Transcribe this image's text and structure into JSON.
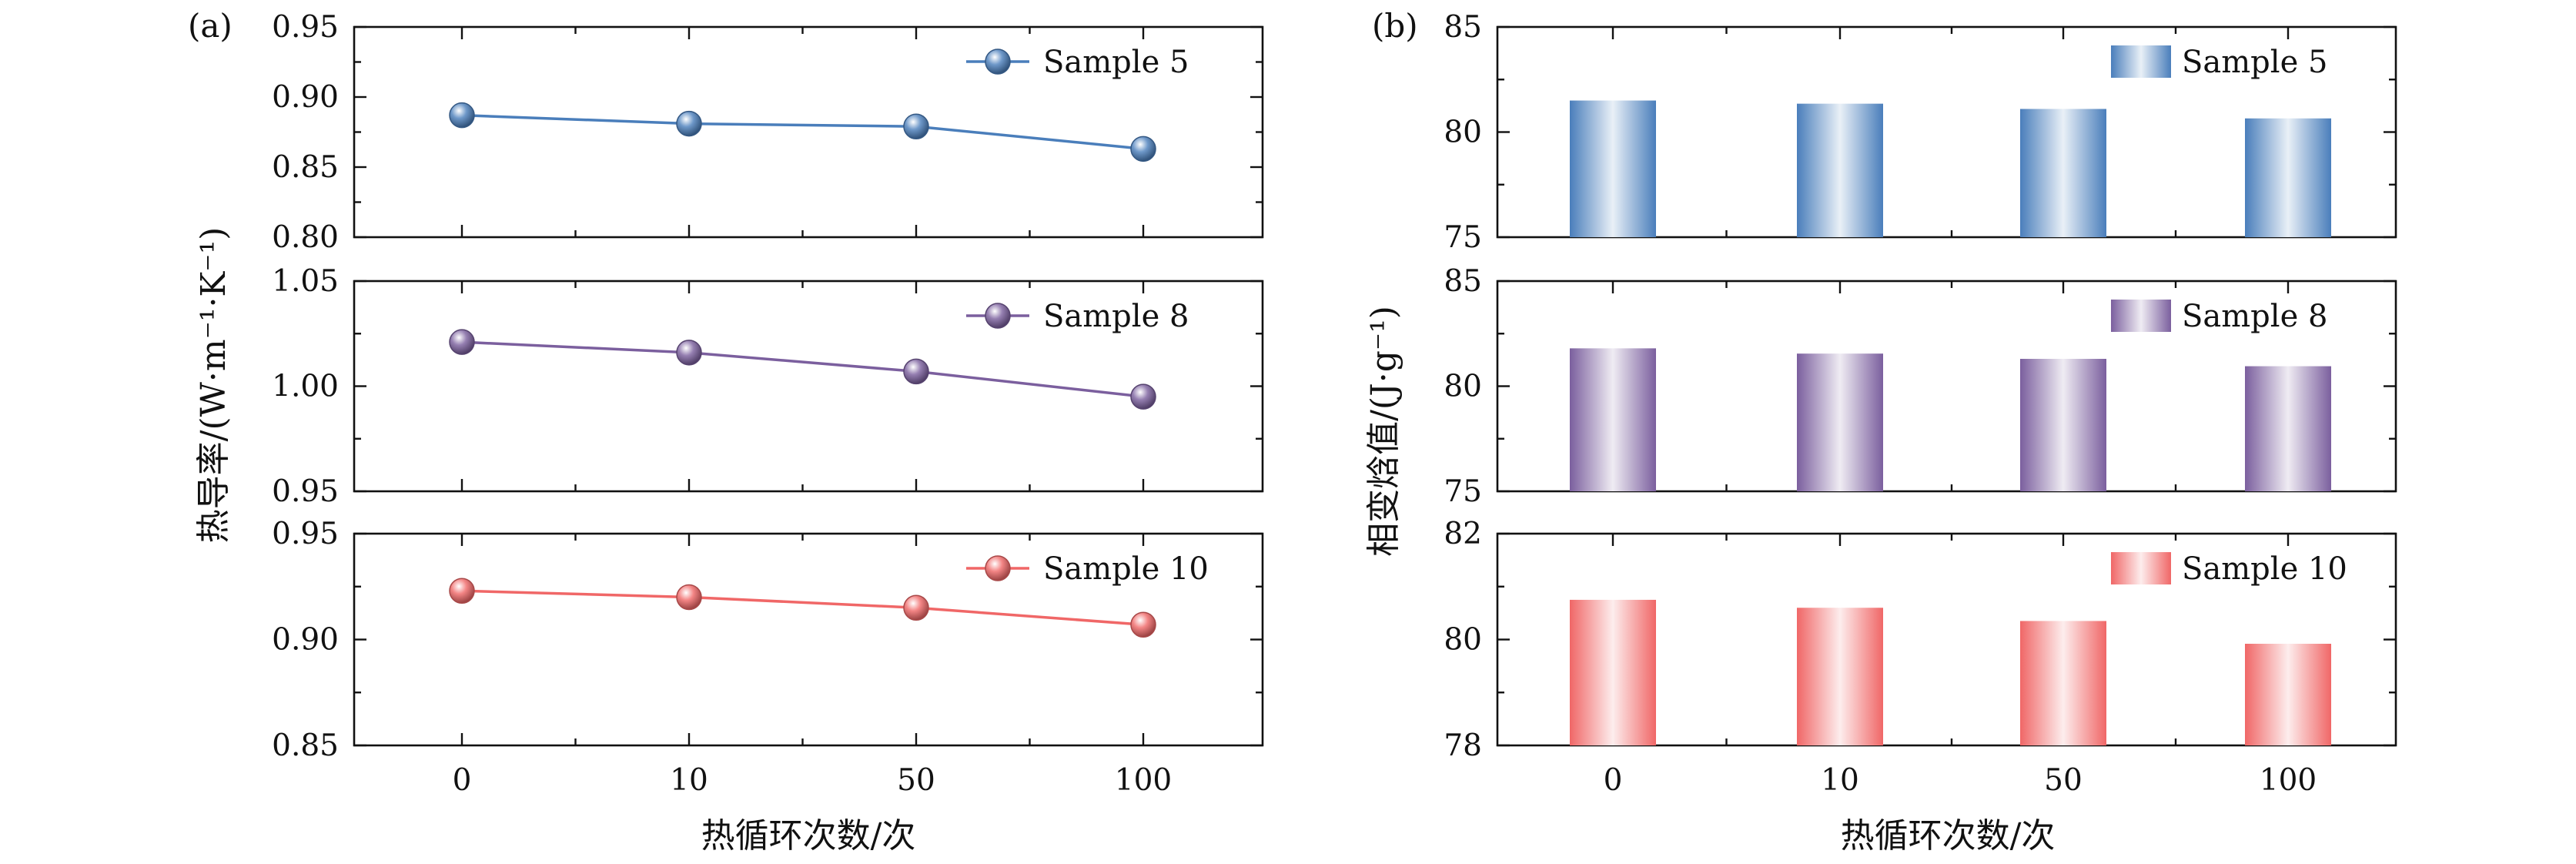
{
  "figure": {
    "shared_xlabel": "热循环次数/次"
  },
  "chart_data": [
    {
      "panel": "(a)",
      "type": "line",
      "ylabel": "热导率/(W·m⁻¹·K⁻¹)",
      "xlabel": "热循环次数/次",
      "categories": [
        "0",
        "10",
        "50",
        "100"
      ],
      "subplots": [
        {
          "series": [
            {
              "name": "Sample 5",
              "color": "#4a7ebb",
              "values": [
                0.887,
                0.881,
                0.879,
                0.863
              ]
            }
          ],
          "ylim": [
            0.8,
            0.95
          ],
          "yticks": [
            "0.80",
            "0.85",
            "0.90",
            "0.95"
          ]
        },
        {
          "series": [
            {
              "name": "Sample 8",
              "color": "#7b5f9e",
              "values": [
                1.021,
                1.016,
                1.007,
                0.995
              ]
            }
          ],
          "ylim": [
            0.95,
            1.05
          ],
          "yticks": [
            "0.95",
            "1.00",
            "1.05"
          ]
        },
        {
          "series": [
            {
              "name": "Sample 10",
              "color": "#f06767",
              "values": [
                0.923,
                0.92,
                0.915,
                0.907
              ]
            }
          ],
          "ylim": [
            0.85,
            0.95
          ],
          "yticks": [
            "0.85",
            "0.90",
            "0.95"
          ]
        }
      ]
    },
    {
      "panel": "(b)",
      "type": "bar",
      "ylabel": "相变焓值/(J·g⁻¹)",
      "xlabel": "热循环次数/次",
      "categories": [
        "0",
        "10",
        "50",
        "100"
      ],
      "subplots": [
        {
          "series": [
            {
              "name": "Sample 5",
              "color": "#4a7ebb",
              "values": [
                81.5,
                81.35,
                81.1,
                80.65
              ]
            }
          ],
          "ylim": [
            75,
            85
          ],
          "yticks": [
            "75",
            "80",
            "85"
          ]
        },
        {
          "series": [
            {
              "name": "Sample 8",
              "color": "#7b5f9e",
              "values": [
                81.8,
                81.55,
                81.3,
                80.95
              ]
            }
          ],
          "ylim": [
            75,
            85
          ],
          "yticks": [
            "75",
            "80",
            "85"
          ]
        },
        {
          "series": [
            {
              "name": "Sample 10",
              "color": "#f06767",
              "values": [
                80.75,
                80.6,
                80.35,
                79.92
              ]
            }
          ],
          "ylim": [
            78,
            82
          ],
          "yticks": [
            "78",
            "80",
            "82"
          ]
        }
      ]
    }
  ]
}
